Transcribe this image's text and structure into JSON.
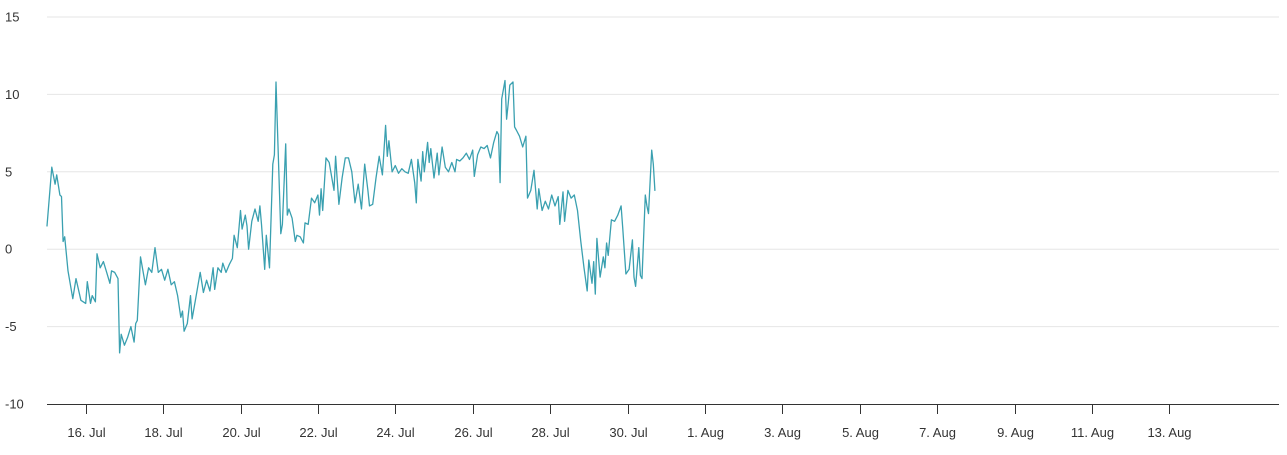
{
  "chart_data": {
    "type": "line",
    "title": "",
    "xlabel": "",
    "ylabel": "",
    "ylim": [
      -10,
      15
    ],
    "xlim": [
      "2023-07-15T00:00",
      "2023-08-15T20:00"
    ],
    "grid": true,
    "legend": "none",
    "y_ticks": [
      "-10",
      "-5",
      "0",
      "5",
      "10",
      "15"
    ],
    "x_ticks": [
      {
        "label": "16. Jul",
        "date": "2023-07-16"
      },
      {
        "label": "18. Jul",
        "date": "2023-07-18"
      },
      {
        "label": "20. Jul",
        "date": "2023-07-20"
      },
      {
        "label": "22. Jul",
        "date": "2023-07-22"
      },
      {
        "label": "24. Jul",
        "date": "2023-07-24"
      },
      {
        "label": "26. Jul",
        "date": "2023-07-26"
      },
      {
        "label": "28. Jul",
        "date": "2023-07-28"
      },
      {
        "label": "30. Jul",
        "date": "2023-07-30"
      },
      {
        "label": "1. Aug",
        "date": "2023-08-01"
      },
      {
        "label": "3. Aug",
        "date": "2023-08-03"
      },
      {
        "label": "5. Aug",
        "date": "2023-08-05"
      },
      {
        "label": "7. Aug",
        "date": "2023-08-07"
      },
      {
        "label": "9. Aug",
        "date": "2023-08-09"
      },
      {
        "label": "11. Aug",
        "date": "2023-08-11"
      },
      {
        "label": "13. Aug",
        "date": "2023-08-13"
      }
    ],
    "series": [
      {
        "color": "#3aa0b0",
        "points": [
          [
            "2023-07-15T00:00",
            1.5
          ],
          [
            "2023-07-15T03:00",
            5.3
          ],
          [
            "2023-07-15T05:00",
            4.2
          ],
          [
            "2023-07-15T06:00",
            4.8
          ],
          [
            "2023-07-15T08:00",
            3.5
          ],
          [
            "2023-07-15T09:00",
            3.4
          ],
          [
            "2023-07-15T10:00",
            0.5
          ],
          [
            "2023-07-15T11:00",
            0.8
          ],
          [
            "2023-07-15T13:00",
            -1.4
          ],
          [
            "2023-07-15T16:00",
            -3.2
          ],
          [
            "2023-07-15T18:00",
            -1.9
          ],
          [
            "2023-07-15T21:00",
            -3.3
          ],
          [
            "2023-07-16T00:00",
            -3.5
          ],
          [
            "2023-07-16T01:00",
            -2.1
          ],
          [
            "2023-07-16T03:00",
            -3.5
          ],
          [
            "2023-07-16T04:00",
            -3.0
          ],
          [
            "2023-07-16T06:00",
            -3.4
          ],
          [
            "2023-07-16T07:00",
            -0.3
          ],
          [
            "2023-07-16T09:00",
            -1.2
          ],
          [
            "2023-07-16T11:00",
            -0.8
          ],
          [
            "2023-07-16T13:00",
            -1.5
          ],
          [
            "2023-07-16T15:00",
            -2.2
          ],
          [
            "2023-07-16T16:00",
            -1.4
          ],
          [
            "2023-07-16T18:00",
            -1.5
          ],
          [
            "2023-07-16T20:00",
            -1.9
          ],
          [
            "2023-07-16T21:00",
            -6.7
          ],
          [
            "2023-07-16T22:00",
            -5.5
          ],
          [
            "2023-07-17T00:00",
            -6.2
          ],
          [
            "2023-07-17T02:00",
            -5.7
          ],
          [
            "2023-07-17T04:00",
            -5.0
          ],
          [
            "2023-07-17T06:00",
            -6.0
          ],
          [
            "2023-07-17T07:00",
            -4.8
          ],
          [
            "2023-07-17T08:00",
            -4.6
          ],
          [
            "2023-07-17T10:00",
            -0.5
          ],
          [
            "2023-07-17T13:00",
            -2.3
          ],
          [
            "2023-07-17T15:00",
            -1.2
          ],
          [
            "2023-07-17T17:00",
            -1.5
          ],
          [
            "2023-07-17T19:00",
            0.1
          ],
          [
            "2023-07-17T21:00",
            -1.5
          ],
          [
            "2023-07-17T23:00",
            -1.3
          ],
          [
            "2023-07-18T01:00",
            -2.0
          ],
          [
            "2023-07-18T03:00",
            -1.3
          ],
          [
            "2023-07-18T05:00",
            -2.3
          ],
          [
            "2023-07-18T07:00",
            -2.1
          ],
          [
            "2023-07-18T09:00",
            -3.0
          ],
          [
            "2023-07-18T11:00",
            -4.4
          ],
          [
            "2023-07-18T12:00",
            -4.0
          ],
          [
            "2023-07-18T13:00",
            -5.3
          ],
          [
            "2023-07-18T15:00",
            -4.8
          ],
          [
            "2023-07-18T17:00",
            -3.0
          ],
          [
            "2023-07-18T18:00",
            -4.5
          ],
          [
            "2023-07-18T20:00",
            -3.3
          ],
          [
            "2023-07-18T23:00",
            -1.5
          ],
          [
            "2023-07-19T01:00",
            -2.8
          ],
          [
            "2023-07-19T03:00",
            -2.0
          ],
          [
            "2023-07-19T05:00",
            -2.7
          ],
          [
            "2023-07-19T07:00",
            -1.2
          ],
          [
            "2023-07-19T08:00",
            -2.6
          ],
          [
            "2023-07-19T10:00",
            -1.2
          ],
          [
            "2023-07-19T12:00",
            -1.5
          ],
          [
            "2023-07-19T13:00",
            -0.9
          ],
          [
            "2023-07-19T15:00",
            -1.5
          ],
          [
            "2023-07-19T17:00",
            -1.0
          ],
          [
            "2023-07-19T19:00",
            -0.6
          ],
          [
            "2023-07-19T20:00",
            0.9
          ],
          [
            "2023-07-19T22:00",
            0.1
          ],
          [
            "2023-07-20T00:00",
            2.5
          ],
          [
            "2023-07-20T01:00",
            1.3
          ],
          [
            "2023-07-20T03:00",
            2.2
          ],
          [
            "2023-07-20T04:00",
            1.5
          ],
          [
            "2023-07-20T05:00",
            0.0
          ],
          [
            "2023-07-20T07:00",
            1.8
          ],
          [
            "2023-07-20T09:00",
            2.6
          ],
          [
            "2023-07-20T11:00",
            1.8
          ],
          [
            "2023-07-20T12:00",
            2.8
          ],
          [
            "2023-07-20T13:00",
            1.6
          ],
          [
            "2023-07-20T15:00",
            -1.3
          ],
          [
            "2023-07-20T16:00",
            0.9
          ],
          [
            "2023-07-20T18:00",
            -1.2
          ],
          [
            "2023-07-20T20:00",
            5.5
          ],
          [
            "2023-07-20T21:00",
            6.1
          ],
          [
            "2023-07-20T22:00",
            10.8
          ],
          [
            "2023-07-20T23:00",
            7.5
          ],
          [
            "2023-07-21T01:00",
            1.0
          ],
          [
            "2023-07-21T02:00",
            1.6
          ],
          [
            "2023-07-21T04:00",
            6.8
          ],
          [
            "2023-07-21T05:00",
            2.2
          ],
          [
            "2023-07-21T06:00",
            2.6
          ],
          [
            "2023-07-21T08:00",
            2.0
          ],
          [
            "2023-07-21T10:00",
            0.5
          ],
          [
            "2023-07-21T11:00",
            0.9
          ],
          [
            "2023-07-21T13:00",
            0.8
          ],
          [
            "2023-07-21T15:00",
            0.4
          ],
          [
            "2023-07-21T16:00",
            1.7
          ],
          [
            "2023-07-21T18:00",
            1.6
          ],
          [
            "2023-07-21T20:00",
            3.3
          ],
          [
            "2023-07-21T22:00",
            3.0
          ],
          [
            "2023-07-22T00:00",
            3.5
          ],
          [
            "2023-07-22T01:00",
            2.2
          ],
          [
            "2023-07-22T02:00",
            3.9
          ],
          [
            "2023-07-22T03:00",
            2.5
          ],
          [
            "2023-07-22T05:00",
            5.9
          ],
          [
            "2023-07-22T07:00",
            5.6
          ],
          [
            "2023-07-22T09:00",
            4.4
          ],
          [
            "2023-07-22T10:00",
            3.8
          ],
          [
            "2023-07-22T11:00",
            6.0
          ],
          [
            "2023-07-22T13:00",
            2.9
          ],
          [
            "2023-07-22T15:00",
            4.6
          ],
          [
            "2023-07-22T17:00",
            5.9
          ],
          [
            "2023-07-22T19:00",
            5.9
          ],
          [
            "2023-07-22T21:00",
            5.0
          ],
          [
            "2023-07-22T23:00",
            3.0
          ],
          [
            "2023-07-23T01:00",
            4.2
          ],
          [
            "2023-07-23T03:00",
            2.6
          ],
          [
            "2023-07-23T05:00",
            5.5
          ],
          [
            "2023-07-23T07:00",
            3.8
          ],
          [
            "2023-07-23T08:00",
            2.8
          ],
          [
            "2023-07-23T10:00",
            2.9
          ],
          [
            "2023-07-23T12:00",
            4.6
          ],
          [
            "2023-07-23T14:00",
            6.0
          ],
          [
            "2023-07-23T16:00",
            4.8
          ],
          [
            "2023-07-23T18:00",
            8.0
          ],
          [
            "2023-07-23T19:00",
            6.0
          ],
          [
            "2023-07-23T20:00",
            7.0
          ],
          [
            "2023-07-23T22:00",
            5.0
          ],
          [
            "2023-07-24T00:00",
            5.4
          ],
          [
            "2023-07-24T02:00",
            4.9
          ],
          [
            "2023-07-24T04:00",
            5.2
          ],
          [
            "2023-07-24T06:00",
            5.0
          ],
          [
            "2023-07-24T08:00",
            4.9
          ],
          [
            "2023-07-24T10:00",
            5.8
          ],
          [
            "2023-07-24T12:00",
            4.3
          ],
          [
            "2023-07-24T13:00",
            3.0
          ],
          [
            "2023-07-24T14:00",
            5.8
          ],
          [
            "2023-07-24T16:00",
            4.4
          ],
          [
            "2023-07-24T17:00",
            6.3
          ],
          [
            "2023-07-24T18:00",
            5.0
          ],
          [
            "2023-07-24T20:00",
            6.9
          ],
          [
            "2023-07-24T21:00",
            5.6
          ],
          [
            "2023-07-24T22:00",
            6.5
          ],
          [
            "2023-07-25T00:00",
            4.6
          ],
          [
            "2023-07-25T02:00",
            6.2
          ],
          [
            "2023-07-25T03:00",
            4.8
          ],
          [
            "2023-07-25T05:00",
            6.6
          ],
          [
            "2023-07-25T07:00",
            5.3
          ],
          [
            "2023-07-25T09:00",
            5.0
          ],
          [
            "2023-07-25T11:00",
            5.6
          ],
          [
            "2023-07-25T13:00",
            5.0
          ],
          [
            "2023-07-25T14:00",
            5.8
          ],
          [
            "2023-07-25T16:00",
            5.7
          ],
          [
            "2023-07-25T18:00",
            5.9
          ],
          [
            "2023-07-25T20:00",
            6.2
          ],
          [
            "2023-07-25T22:00",
            5.8
          ],
          [
            "2023-07-26T00:00",
            6.4
          ],
          [
            "2023-07-26T01:00",
            4.7
          ],
          [
            "2023-07-26T03:00",
            6.1
          ],
          [
            "2023-07-26T05:00",
            6.6
          ],
          [
            "2023-07-26T07:00",
            6.5
          ],
          [
            "2023-07-26T09:00",
            6.7
          ],
          [
            "2023-07-26T11:00",
            5.9
          ],
          [
            "2023-07-26T13:00",
            6.9
          ],
          [
            "2023-07-26T15:00",
            7.6
          ],
          [
            "2023-07-26T16:00",
            7.4
          ],
          [
            "2023-07-26T17:00",
            4.3
          ],
          [
            "2023-07-26T18:00",
            9.7
          ],
          [
            "2023-07-26T20:00",
            10.9
          ],
          [
            "2023-07-26T21:00",
            8.4
          ],
          [
            "2023-07-26T22:00",
            9.4
          ],
          [
            "2023-07-26T23:00",
            10.6
          ],
          [
            "2023-07-27T01:00",
            10.8
          ],
          [
            "2023-07-27T02:00",
            7.9
          ],
          [
            "2023-07-27T03:00",
            7.7
          ],
          [
            "2023-07-27T05:00",
            7.3
          ],
          [
            "2023-07-27T07:00",
            6.6
          ],
          [
            "2023-07-27T09:00",
            7.3
          ],
          [
            "2023-07-27T10:00",
            3.3
          ],
          [
            "2023-07-27T12:00",
            3.8
          ],
          [
            "2023-07-27T14:00",
            5.1
          ],
          [
            "2023-07-27T16:00",
            2.6
          ],
          [
            "2023-07-27T17:00",
            3.9
          ],
          [
            "2023-07-27T19:00",
            2.5
          ],
          [
            "2023-07-27T21:00",
            3.1
          ],
          [
            "2023-07-27T23:00",
            2.6
          ],
          [
            "2023-07-28T01:00",
            3.5
          ],
          [
            "2023-07-28T03:00",
            2.8
          ],
          [
            "2023-07-28T05:00",
            3.4
          ],
          [
            "2023-07-28T06:00",
            1.6
          ],
          [
            "2023-07-28T08:00",
            3.7
          ],
          [
            "2023-07-28T09:00",
            1.8
          ],
          [
            "2023-07-28T11:00",
            3.8
          ],
          [
            "2023-07-28T13:00",
            3.3
          ],
          [
            "2023-07-28T15:00",
            3.5
          ],
          [
            "2023-07-28T17:00",
            2.5
          ],
          [
            "2023-07-28T19:00",
            0.5
          ],
          [
            "2023-07-28T21:00",
            -1.2
          ],
          [
            "2023-07-28T23:00",
            -2.7
          ],
          [
            "2023-07-29T00:00",
            -0.7
          ],
          [
            "2023-07-29T02:00",
            -2.2
          ],
          [
            "2023-07-29T03:00",
            -0.8
          ],
          [
            "2023-07-29T04:00",
            -2.9
          ],
          [
            "2023-07-29T05:00",
            0.7
          ],
          [
            "2023-07-29T07:00",
            -1.8
          ],
          [
            "2023-07-29T09:00",
            -0.5
          ],
          [
            "2023-07-29T10:00",
            -1.2
          ],
          [
            "2023-07-29T11:00",
            0.4
          ],
          [
            "2023-07-29T12:00",
            -0.4
          ],
          [
            "2023-07-29T14:00",
            1.9
          ],
          [
            "2023-07-29T16:00",
            1.8
          ],
          [
            "2023-07-29T18:00",
            2.2
          ],
          [
            "2023-07-29T20:00",
            2.8
          ],
          [
            "2023-07-29T21:00",
            1.4
          ],
          [
            "2023-07-29T23:00",
            -1.6
          ],
          [
            "2023-07-30T01:00",
            -1.3
          ],
          [
            "2023-07-30T03:00",
            0.6
          ],
          [
            "2023-07-30T04:00",
            -1.8
          ],
          [
            "2023-07-30T05:00",
            -2.4
          ],
          [
            "2023-07-30T07:00",
            0.1
          ],
          [
            "2023-07-30T08:00",
            -1.7
          ],
          [
            "2023-07-30T09:00",
            -1.9
          ],
          [
            "2023-07-30T11:00",
            3.5
          ],
          [
            "2023-07-30T12:00",
            2.8
          ],
          [
            "2023-07-30T13:00",
            2.3
          ],
          [
            "2023-07-30T15:00",
            6.4
          ],
          [
            "2023-07-30T16:00",
            5.5
          ],
          [
            "2023-07-30T17:00",
            3.8
          ]
        ]
      }
    ]
  }
}
